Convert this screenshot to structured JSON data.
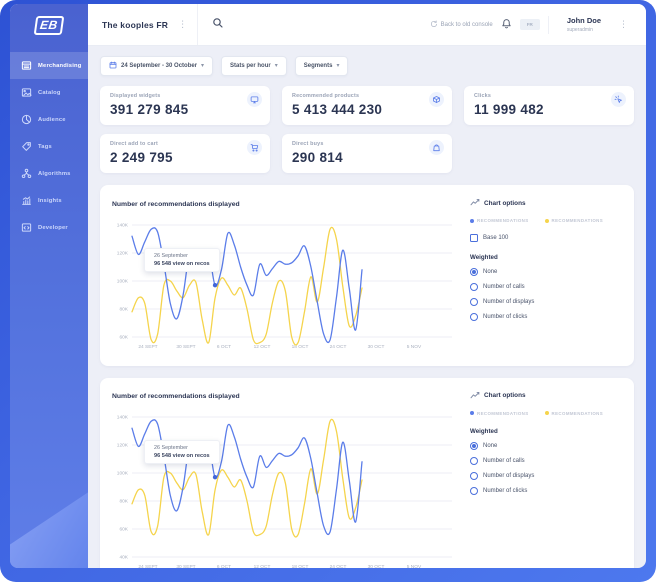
{
  "app": {
    "logo_text": "EB",
    "colors": {
      "accent": "#4a6fdb",
      "line_blue": "#5b7de9",
      "line_yellow": "#f5d44c"
    }
  },
  "glyphs": {
    "chevron_down": "▾",
    "kebab": "⋮"
  },
  "header": {
    "workspace_name": "The kooples FR",
    "back_to_console_label": "Back to old console",
    "locale_badge": "FR",
    "user_name": "John Doe",
    "user_role": "superadmin"
  },
  "sidebar": {
    "items": [
      {
        "label": "Merchandising",
        "icon": "merchandising-icon",
        "active": true
      },
      {
        "label": "Catalog",
        "icon": "catalog-icon",
        "active": false
      },
      {
        "label": "Audience",
        "icon": "audience-icon",
        "active": false
      },
      {
        "label": "Tags",
        "icon": "tags-icon",
        "active": false
      },
      {
        "label": "Algorithms",
        "icon": "algorithms-icon",
        "active": false
      },
      {
        "label": "Insights",
        "icon": "insights-icon",
        "active": false
      },
      {
        "label": "Developer",
        "icon": "developer-icon",
        "active": false
      }
    ]
  },
  "filters": {
    "date_range": "24 September - 30 October",
    "stats_per": "Stats per hour",
    "segments": "Segments"
  },
  "stat_cards": [
    {
      "label": "Displayed widgets",
      "value": "391 279 845",
      "icon": "monitor-icon"
    },
    {
      "label": "Recommended products",
      "value": "5 413 444 230",
      "icon": "product-box-icon"
    },
    {
      "label": "Clicks",
      "value": "11 999 482",
      "icon": "click-icon"
    },
    {
      "label": "Direct add to cart",
      "value": "2 249 795",
      "icon": "cart-icon"
    },
    {
      "label": "Direct buys",
      "value": "290 814",
      "icon": "shopping-bag-icon"
    }
  ],
  "chart_options": {
    "title": "Chart options",
    "legend": [
      {
        "label": "RECOMMENDATIONS",
        "color": "#5b7de9"
      },
      {
        "label": "RECOMMENDATIONS",
        "color": "#f5d44c"
      }
    ],
    "base_100_label": "Base 100",
    "base_100_checked": false,
    "weighted_label": "Weighted",
    "weighted_options": [
      "None",
      "Number of calls",
      "Number of displays",
      "Number of clicks"
    ],
    "weighted_selected": "None"
  },
  "chart_data": [
    {
      "type": "line",
      "title": "Number of recommendations displayed",
      "x_ticks": [
        "24 SEPT",
        "30 SEPT",
        "6 OCT",
        "12 OCT",
        "18 OCT",
        "24 OCT",
        "30 OCT",
        "5 NOV"
      ],
      "y_ticks": [
        "140K",
        "120K",
        "100K",
        "80K",
        "60K"
      ],
      "ylim": [
        60,
        140
      ],
      "grid": true,
      "legend_position": "options-panel",
      "series": [
        {
          "name": "RECOMMENDATIONS",
          "color": "#5b7de9",
          "values": [
            132,
            119,
            128,
            137,
            135,
            112,
            84,
            73,
            90,
            120,
            122,
            118,
            121,
            97,
            108,
            134,
            126,
            110,
            97,
            90,
            112,
            104,
            109,
            114,
            112,
            113,
            118,
            125,
            110,
            85,
            62,
            58,
            88,
            122,
            95,
            65,
            108
          ]
        },
        {
          "name": "RECOMMENDATIONS",
          "color": "#f5d44c",
          "values": [
            78,
            88,
            84,
            58,
            62,
            97,
            100,
            93,
            88,
            97,
            99,
            72,
            56,
            88,
            102,
            97,
            90,
            95,
            80,
            58,
            56,
            62,
            85,
            100,
            93,
            60,
            56,
            78,
            103,
            85,
            110,
            137,
            130,
            96,
            68,
            75,
            95
          ]
        }
      ],
      "tooltip": {
        "date": "26 September",
        "label": "96 548 view on recos",
        "series_index": 0,
        "point_index": 13
      },
      "has_base_100": true
    },
    {
      "type": "line",
      "title": "Number of recommendations displayed",
      "x_ticks": [
        "24 SEPT",
        "30 SEPT",
        "6 OCT",
        "12 OCT",
        "18 OCT",
        "24 OCT",
        "30 OCT",
        "5 NOV"
      ],
      "y_ticks": [
        "140K",
        "120K",
        "100K",
        "80K",
        "60K",
        "40K"
      ],
      "ylim": [
        40,
        140
      ],
      "grid": true,
      "legend_position": "options-panel",
      "series": [
        {
          "name": "RECOMMENDATIONS",
          "color": "#5b7de9",
          "values": [
            132,
            119,
            128,
            137,
            135,
            112,
            84,
            73,
            90,
            120,
            122,
            118,
            121,
            97,
            108,
            134,
            126,
            110,
            97,
            90,
            112,
            104,
            109,
            114,
            112,
            113,
            118,
            125,
            110,
            85,
            62,
            58,
            88,
            122,
            95,
            65,
            108
          ]
        },
        {
          "name": "RECOMMENDATIONS",
          "color": "#f5d44c",
          "values": [
            78,
            88,
            84,
            58,
            62,
            97,
            100,
            93,
            88,
            97,
            99,
            72,
            56,
            88,
            102,
            97,
            90,
            95,
            80,
            58,
            56,
            62,
            85,
            100,
            93,
            60,
            56,
            78,
            103,
            85,
            110,
            137,
            130,
            96,
            68,
            75,
            95
          ]
        }
      ],
      "tooltip": {
        "date": "26 September",
        "label": "96 548 view on recos",
        "series_index": 0,
        "point_index": 13
      },
      "has_base_100": false
    }
  ]
}
